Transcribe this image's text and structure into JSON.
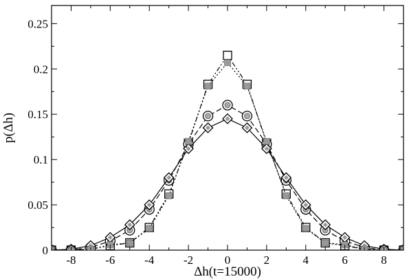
{
  "chart_data": {
    "type": "line",
    "xlabel": "Δh(t=15000)",
    "ylabel": "p(Δh)",
    "xlim": [
      -9,
      9
    ],
    "ylim": [
      0,
      0.27
    ],
    "x_ticks": [
      -8,
      -6,
      -4,
      -2,
      0,
      2,
      4,
      6,
      8
    ],
    "x_tick_labels": [
      "-8",
      "-6",
      "-4",
      "-2",
      "0",
      "2",
      "4",
      "6",
      "8"
    ],
    "y_ticks": [
      0,
      0.05,
      0.1,
      0.15,
      0.2,
      0.25
    ],
    "y_tick_labels": [
      "0",
      "0.05",
      "0.1",
      "0.15",
      "0.2",
      "0.25"
    ],
    "grid": false,
    "legend": "none",
    "x": [
      -9,
      -8,
      -7,
      -6,
      -5,
      -4,
      -3,
      -2,
      -1,
      0,
      1,
      2,
      3,
      4,
      5,
      6,
      7,
      8,
      9
    ],
    "series": [
      {
        "marker": "square",
        "line": "dash-dot-dot",
        "values": [
          0,
          0,
          0.001,
          0.005,
          0.008,
          0.025,
          0.062,
          0.118,
          0.183,
          0.215,
          0.183,
          0.118,
          0.062,
          0.025,
          0.008,
          0.005,
          0.001,
          0,
          0
        ]
      },
      {
        "marker": "circle",
        "line": "dashed",
        "values": [
          0,
          0,
          0.003,
          0.01,
          0.022,
          0.045,
          0.077,
          0.117,
          0.148,
          0.16,
          0.148,
          0.117,
          0.077,
          0.045,
          0.022,
          0.01,
          0.003,
          0,
          0
        ]
      },
      {
        "marker": "diamond",
        "line": "solid",
        "values": [
          0,
          0.001,
          0.005,
          0.014,
          0.028,
          0.05,
          0.08,
          0.112,
          0.135,
          0.145,
          0.135,
          0.112,
          0.08,
          0.05,
          0.028,
          0.014,
          0.005,
          0.001,
          0
        ]
      },
      {
        "marker": "dotted-square",
        "line": "dotted",
        "values": [
          0,
          0,
          0.001,
          0.006,
          0.008,
          0.024,
          0.06,
          0.12,
          0.181,
          0.207,
          0.181,
          0.12,
          0.06,
          0.024,
          0.008,
          0.006,
          0.001,
          0,
          0
        ]
      }
    ]
  }
}
